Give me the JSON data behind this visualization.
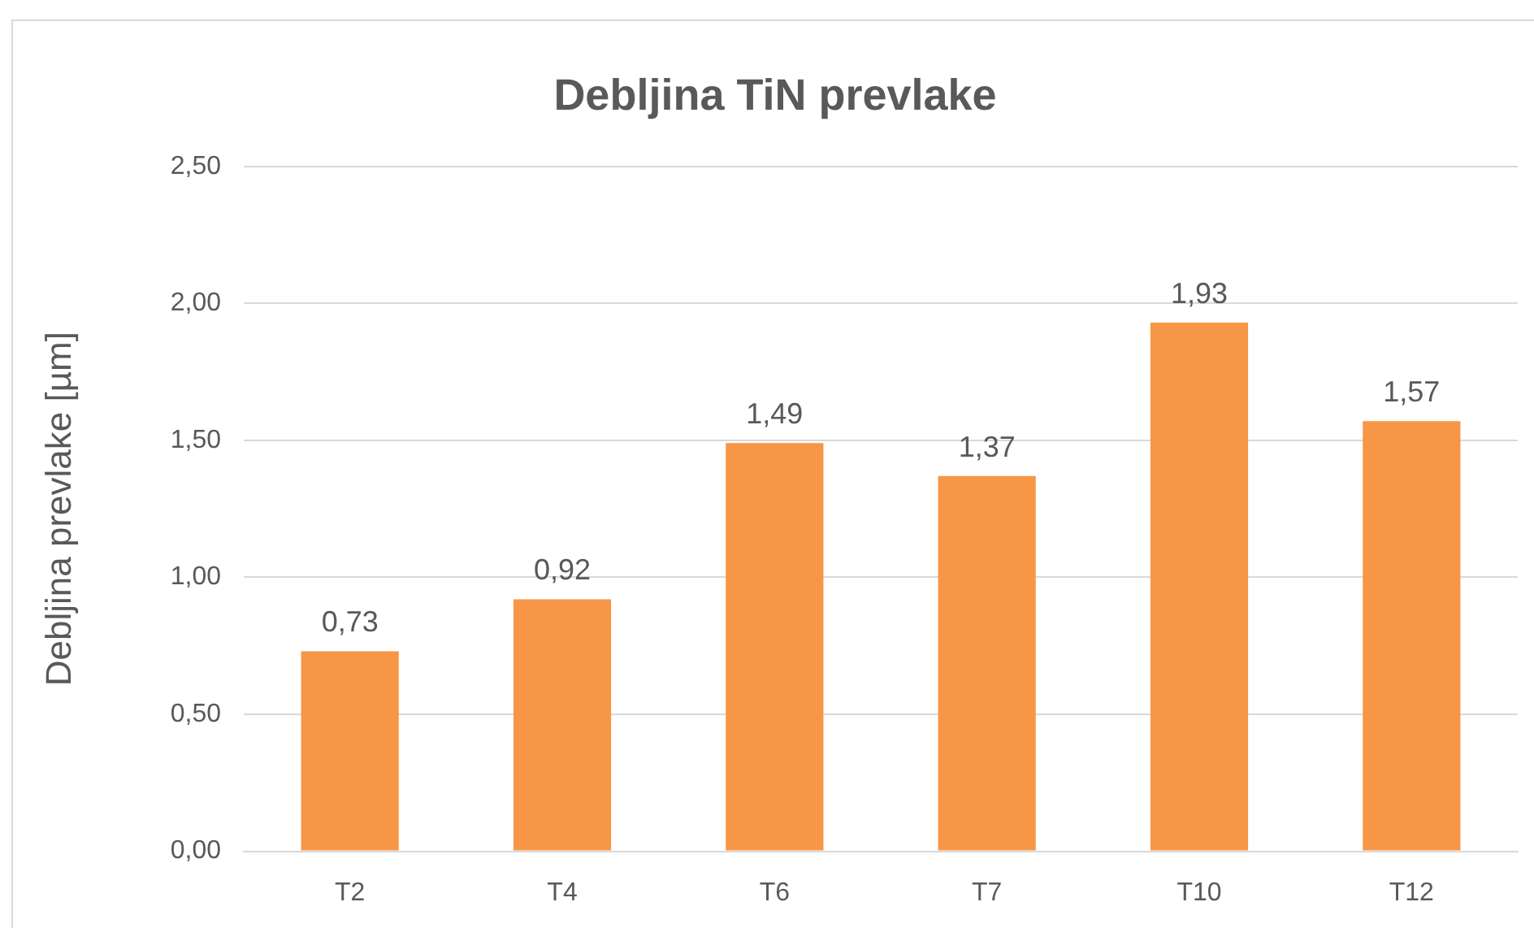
{
  "chart_data": {
    "type": "bar",
    "title": "Debljina TiN prevlake",
    "ylabel": "Debljina prevlake [µm]",
    "categories": [
      "T2",
      "T4",
      "T6",
      "T7",
      "T10",
      "T12"
    ],
    "values": [
      0.73,
      0.92,
      1.49,
      1.37,
      1.93,
      1.57
    ],
    "value_labels": [
      "0,73",
      "0,92",
      "1,49",
      "1,37",
      "1,93",
      "1,57"
    ],
    "color": "#f79646",
    "ylim": [
      0,
      2.5
    ],
    "yticks": [
      {
        "value": 0,
        "label": "0,00"
      },
      {
        "value": 0.5,
        "label": "0,50"
      },
      {
        "value": 1,
        "label": "1,00"
      },
      {
        "value": 1.5,
        "label": "1,50"
      },
      {
        "value": 2,
        "label": "2,00"
      },
      {
        "value": 2.5,
        "label": "2,50"
      }
    ],
    "grid": "y",
    "legend": false
  }
}
